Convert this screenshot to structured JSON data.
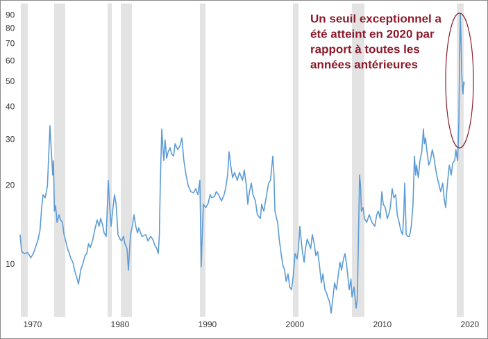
{
  "chart_data": {
    "type": "line",
    "ylog": true,
    "grid": false,
    "xlim": [
      1968.5,
      2021.04
    ],
    "ylim": [
      6.3,
      100
    ],
    "xticks": [
      1970,
      1980,
      1990,
      2000,
      2010,
      2020
    ],
    "yticks": [
      10,
      20,
      30,
      40,
      50,
      60,
      70,
      80,
      90
    ],
    "recession_color": "#e3e3e3",
    "recessions": [
      [
        1968.66,
        1969.45
      ],
      [
        1972.47,
        1973.74
      ],
      [
        1978.58,
        1979.06
      ],
      [
        1980.09,
        1981.36
      ],
      [
        1989.13,
        1989.77
      ],
      [
        1999.77,
        2000.4
      ],
      [
        2006.52,
        2007.94
      ],
      [
        2018.5,
        2019.29
      ]
    ],
    "annotation": [
      "Un seuil exceptionnel a",
      "été atteint en 2020 par",
      "rapport à toutes les",
      "années antérieures"
    ],
    "annotation_color": "#8b1a2b",
    "x": [
      1968.58,
      1968.75,
      1969.06,
      1969.45,
      1969.8,
      1970.09,
      1970.4,
      1970.64,
      1970.85,
      1971.04,
      1971.2,
      1971.44,
      1971.7,
      1971.99,
      1972.15,
      1972.3,
      1972.39,
      1972.5,
      1972.63,
      1972.8,
      1973.02,
      1973.2,
      1973.42,
      1973.6,
      1973.82,
      1974.0,
      1974.21,
      1974.4,
      1974.61,
      1974.8,
      1975.01,
      1975.25,
      1975.5,
      1975.8,
      1976.0,
      1976.2,
      1976.4,
      1976.6,
      1976.9,
      1977.1,
      1977.39,
      1977.6,
      1977.79,
      1978.0,
      1978.18,
      1978.42,
      1978.66,
      1978.8,
      1978.98,
      1979.15,
      1979.37,
      1979.55,
      1979.77,
      1980.0,
      1980.17,
      1980.4,
      1980.56,
      1980.8,
      1980.96,
      1981.1,
      1981.2,
      1981.4,
      1981.6,
      1981.8,
      1982.0,
      1982.15,
      1982.5,
      1982.94,
      1983.2,
      1983.5,
      1983.74,
      1984.0,
      1984.2,
      1984.37,
      1984.5,
      1984.6,
      1984.77,
      1984.9,
      1985.01,
      1985.15,
      1985.33,
      1985.5,
      1985.72,
      1985.9,
      1986.12,
      1986.3,
      1986.6,
      1986.85,
      1987.07,
      1987.3,
      1987.55,
      1987.8,
      1988.1,
      1988.4,
      1988.66,
      1988.9,
      1989.13,
      1989.29,
      1989.4,
      1989.53,
      1989.8,
      1990.09,
      1990.3,
      1990.48,
      1990.8,
      1991.0,
      1991.28,
      1991.6,
      1991.9,
      1992.07,
      1992.3,
      1992.47,
      1992.65,
      1992.87,
      1993.1,
      1993.4,
      1993.66,
      1994.0,
      1994.2,
      1994.45,
      1994.61,
      1994.8,
      1995.01,
      1995.2,
      1995.48,
      1995.7,
      1996.04,
      1996.2,
      1996.44,
      1996.7,
      1996.99,
      1997.2,
      1997.47,
      1997.6,
      1997.71,
      1997.9,
      1998.02,
      1998.2,
      1998.42,
      1998.6,
      1998.82,
      1999.0,
      1999.21,
      1999.4,
      1999.61,
      1999.8,
      2000.01,
      2000.25,
      2000.4,
      2000.56,
      2000.7,
      2000.88,
      2001.05,
      2001.2,
      2001.4,
      2001.6,
      2001.8,
      2001.99,
      2002.2,
      2002.39,
      2002.6,
      2002.79,
      2003.02,
      2003.2,
      2003.42,
      2003.6,
      2003.74,
      2003.95,
      2004.13,
      2004.35,
      2004.53,
      2004.75,
      2004.93,
      2005.15,
      2005.33,
      2005.55,
      2005.72,
      2005.9,
      2006.05,
      2006.2,
      2006.4,
      2006.52,
      2006.75,
      2006.99,
      2007.1,
      2007.15,
      2007.3,
      2007.39,
      2007.5,
      2007.6,
      2007.8,
      2007.94,
      2008.2,
      2008.5,
      2008.8,
      2009.13,
      2009.35,
      2009.53,
      2009.75,
      2009.93,
      2010.1,
      2010.33,
      2010.55,
      2010.72,
      2010.9,
      2011.12,
      2011.3,
      2011.52,
      2011.7,
      2011.91,
      2012.1,
      2012.31,
      2012.45,
      2012.55,
      2012.65,
      2012.71,
      2012.9,
      2013.1,
      2013.3,
      2013.5,
      2013.66,
      2013.8,
      2013.9,
      2014.1,
      2014.29,
      2014.5,
      2014.69,
      2014.8,
      2014.93,
      2015.1,
      2015.3,
      2015.48,
      2015.7,
      2015.87,
      2016.1,
      2016.27,
      2016.5,
      2016.67,
      2016.9,
      2017.05,
      2017.23,
      2017.35,
      2017.47,
      2017.65,
      2017.86,
      2018.05,
      2018.26,
      2018.4,
      2018.5,
      2018.6,
      2018.74,
      2018.82,
      2018.9,
      2018.98,
      2019.06,
      2019.14,
      2019.21,
      2019.3,
      2019.37
    ],
    "series": [
      {
        "color": "#5b9bd5",
        "values": [
          13,
          11.2,
          11.0,
          11.1,
          10.6,
          11.0,
          11.8,
          12.5,
          13.5,
          16.5,
          18.5,
          18,
          20,
          34,
          27,
          22,
          25,
          16,
          16.8,
          14.5,
          15.5,
          14.8,
          14.5,
          13,
          12.2,
          11.5,
          11,
          10.5,
          10.2,
          9.5,
          9.0,
          8.4,
          9.5,
          10.2,
          10.8,
          11.0,
          12,
          11.6,
          12.5,
          13.5,
          14.8,
          14,
          15,
          14.2,
          13.2,
          12.8,
          21,
          17,
          14,
          16,
          18.5,
          17,
          13.0,
          12.5,
          12.3,
          12.8,
          12,
          11.5,
          9.5,
          11.5,
          13,
          14,
          15.5,
          14,
          13.2,
          13.8,
          12.8,
          13,
          12.3,
          12.8,
          12.5,
          11.8,
          11.5,
          11.0,
          13,
          20,
          33,
          28,
          25,
          30,
          25.5,
          27,
          28,
          26.5,
          26,
          29,
          27.5,
          28.5,
          30.5,
          25,
          22,
          20,
          19,
          18.8,
          19.5,
          18.5,
          21,
          9.8,
          13,
          17,
          16.5,
          17.2,
          18.5,
          18,
          18.2,
          19,
          18.5,
          17.5,
          18.5,
          19.5,
          22,
          27,
          24,
          21.5,
          22.5,
          21,
          22.5,
          21,
          23,
          20,
          17,
          19,
          20.5,
          18.5,
          17.5,
          15.5,
          15,
          17,
          16,
          18,
          20.5,
          21,
          26,
          22,
          16,
          15,
          14.5,
          12.5,
          11.0,
          10,
          9.5,
          8.6,
          9.2,
          8.2,
          8.0,
          9,
          11,
          10.5,
          11.5,
          14,
          12.5,
          11,
          10.2,
          11.5,
          12.5,
          12,
          11.5,
          13,
          12,
          10.8,
          11.2,
          10,
          8.5,
          9.2,
          8.0,
          7.8,
          7.5,
          7.2,
          6.5,
          7.5,
          8.5,
          8.0,
          9.0,
          10.2,
          9.5,
          10.5,
          11,
          10,
          9,
          8.0,
          8.8,
          7.5,
          8.2,
          6.8,
          7.2,
          8,
          15,
          22,
          20,
          16,
          16.5,
          15,
          14.5,
          15.5,
          14.5,
          14,
          15.5,
          16,
          15,
          19,
          17,
          16.5,
          15,
          15.5,
          16.5,
          19.5,
          18,
          18.5,
          15.5,
          14.5,
          13.5,
          13,
          16,
          20.5,
          16,
          13,
          12.8,
          12.8,
          14,
          17,
          26,
          22,
          24,
          21.5,
          25,
          27,
          33,
          29,
          30.5,
          27,
          24,
          25,
          27.5,
          26,
          23,
          21.5,
          20,
          19,
          20.5,
          18,
          16.5,
          19,
          21,
          24,
          22,
          24.5,
          25,
          27.5,
          26,
          25,
          35,
          60,
          91,
          75,
          55,
          48,
          45,
          50,
          49
        ]
      }
    ]
  }
}
